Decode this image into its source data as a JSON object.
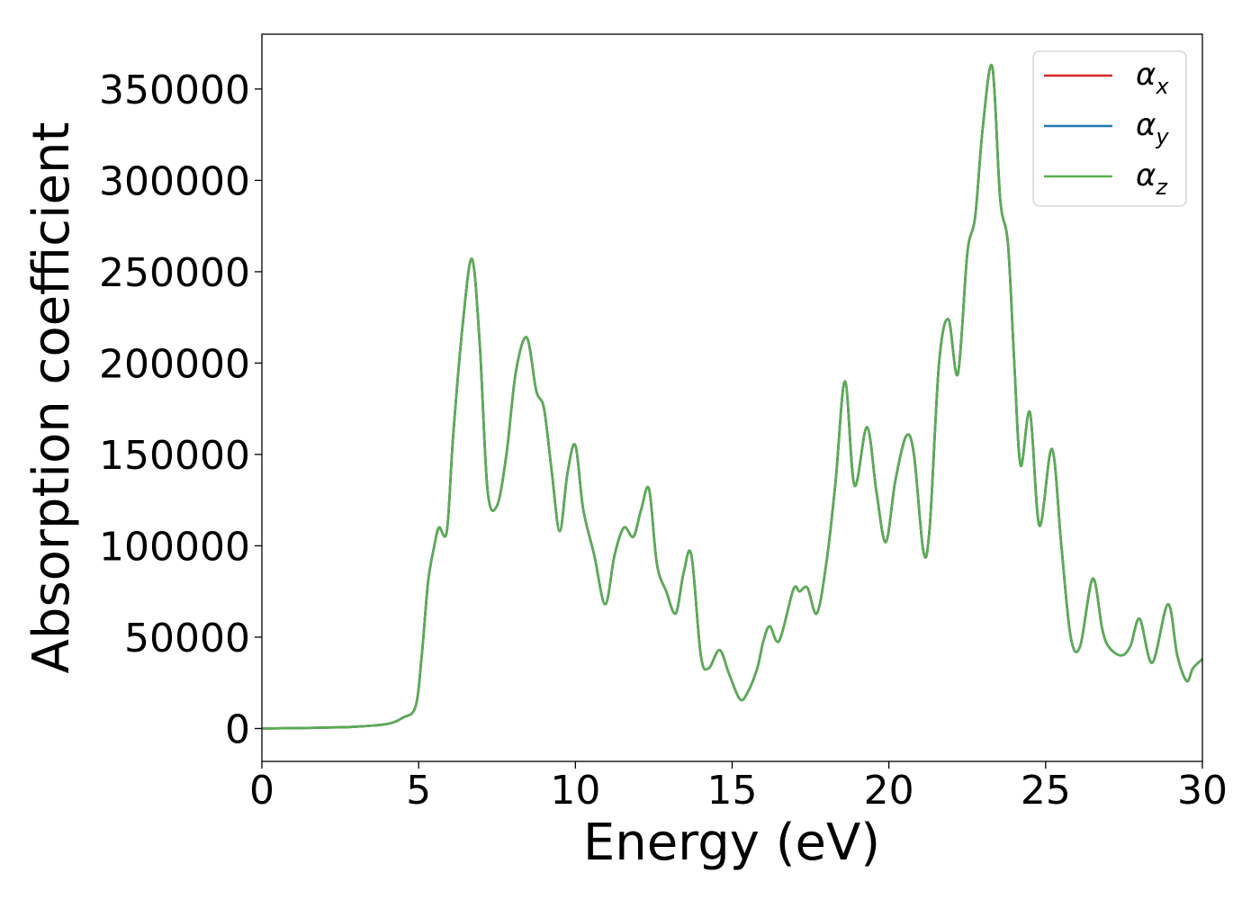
{
  "chart_data": {
    "type": "line",
    "xlabel": "Energy (eV)",
    "ylabel": "Absorption coefficient",
    "xlim": [
      0,
      30
    ],
    "ylim": [
      -18000,
      380000
    ],
    "xticks": [
      "0",
      "5",
      "10",
      "15",
      "20",
      "25",
      "30"
    ],
    "yticks": [
      "0",
      "50000",
      "100000",
      "150000",
      "200000",
      "250000",
      "300000",
      "350000"
    ],
    "legend_position": "top-right",
    "grid": false,
    "series": [
      {
        "name": "α",
        "subscript": "x",
        "color": "#d62728",
        "x": [
          0,
          1,
          2,
          3,
          4,
          4.5,
          4.9,
          5.1,
          5.3,
          5.5,
          5.65,
          5.9,
          6.1,
          6.4,
          6.7,
          6.95,
          7.2,
          7.5,
          7.8,
          8.1,
          8.45,
          8.75,
          9.0,
          9.25,
          9.5,
          9.75,
          10.0,
          10.25,
          10.6,
          10.95,
          11.25,
          11.55,
          11.85,
          12.1,
          12.35,
          12.6,
          12.9,
          13.2,
          13.45,
          13.7,
          14.0,
          14.25,
          14.6,
          14.9,
          15.25,
          15.5,
          15.8,
          16.0,
          16.2,
          16.5,
          16.95,
          17.15,
          17.4,
          17.7,
          18.0,
          18.3,
          18.6,
          18.9,
          19.3,
          19.6,
          19.9,
          20.2,
          20.55,
          20.8,
          21.1,
          21.3,
          21.6,
          21.9,
          22.2,
          22.5,
          22.75,
          23.0,
          23.3,
          23.55,
          23.8,
          24.0,
          24.2,
          24.5,
          24.8,
          25.2,
          25.5,
          25.8,
          26.1,
          26.5,
          26.8,
          27.0,
          27.4,
          27.7,
          28.0,
          28.4,
          28.9,
          29.2,
          29.5,
          29.7,
          30.0
        ],
        "y": [
          0,
          200,
          500,
          1000,
          2500,
          6000,
          12000,
          40000,
          80000,
          100000,
          110000,
          108000,
          160000,
          220000,
          257000,
          210000,
          130000,
          122000,
          150000,
          195000,
          214000,
          185000,
          175000,
          140000,
          108000,
          140000,
          155000,
          120000,
          95000,
          68000,
          95000,
          110000,
          105000,
          120000,
          131000,
          90000,
          75000,
          63000,
          85000,
          95000,
          40000,
          33000,
          43000,
          30000,
          16000,
          20000,
          33000,
          48000,
          56000,
          48000,
          76000,
          75000,
          77000,
          63000,
          90000,
          135000,
          190000,
          133000,
          165000,
          130000,
          102000,
          135000,
          160000,
          150000,
          97000,
          110000,
          200000,
          224000,
          194000,
          260000,
          280000,
          330000,
          362000,
          290000,
          265000,
          200000,
          144000,
          173000,
          111000,
          153000,
          100000,
          50000,
          45000,
          82000,
          55000,
          45000,
          40000,
          45000,
          60000,
          36000,
          68000,
          40000,
          26000,
          33000,
          38000
        ]
      },
      {
        "name": "α",
        "subscript": "y",
        "color": "#1f77b4",
        "x": [
          0,
          1,
          2,
          3,
          4,
          4.5,
          4.9,
          5.1,
          5.3,
          5.5,
          5.65,
          5.9,
          6.1,
          6.4,
          6.7,
          6.95,
          7.2,
          7.5,
          7.8,
          8.1,
          8.45,
          8.75,
          9.0,
          9.25,
          9.5,
          9.75,
          10.0,
          10.25,
          10.6,
          10.95,
          11.25,
          11.55,
          11.85,
          12.1,
          12.35,
          12.6,
          12.9,
          13.2,
          13.45,
          13.7,
          14.0,
          14.25,
          14.6,
          14.9,
          15.25,
          15.5,
          15.8,
          16.0,
          16.2,
          16.5,
          16.95,
          17.15,
          17.4,
          17.7,
          18.0,
          18.3,
          18.6,
          18.9,
          19.3,
          19.6,
          19.9,
          20.2,
          20.55,
          20.8,
          21.1,
          21.3,
          21.6,
          21.9,
          22.2,
          22.5,
          22.75,
          23.0,
          23.3,
          23.55,
          23.8,
          24.0,
          24.2,
          24.5,
          24.8,
          25.2,
          25.5,
          25.8,
          26.1,
          26.5,
          26.8,
          27.0,
          27.4,
          27.7,
          28.0,
          28.4,
          28.9,
          29.2,
          29.5,
          29.7,
          30.0
        ],
        "y": [
          0,
          200,
          500,
          1000,
          2500,
          6000,
          12000,
          40000,
          80000,
          100000,
          110000,
          108000,
          160000,
          220000,
          257000,
          210000,
          130000,
          122000,
          150000,
          195000,
          214000,
          185000,
          175000,
          140000,
          108000,
          140000,
          155000,
          120000,
          95000,
          68000,
          95000,
          110000,
          105000,
          120000,
          131000,
          90000,
          75000,
          63000,
          85000,
          95000,
          40000,
          33000,
          43000,
          30000,
          16000,
          20000,
          33000,
          48000,
          56000,
          48000,
          76000,
          75000,
          77000,
          63000,
          90000,
          135000,
          190000,
          133000,
          165000,
          130000,
          102000,
          135000,
          160000,
          150000,
          97000,
          110000,
          200000,
          224000,
          194000,
          260000,
          280000,
          330000,
          362000,
          290000,
          265000,
          200000,
          144000,
          173000,
          111000,
          153000,
          100000,
          50000,
          45000,
          82000,
          55000,
          45000,
          40000,
          45000,
          60000,
          36000,
          68000,
          40000,
          26000,
          33000,
          38000
        ]
      },
      {
        "name": "α",
        "subscript": "z",
        "color": "#5aad52",
        "x": [
          0,
          1,
          2,
          3,
          4,
          4.5,
          4.9,
          5.1,
          5.3,
          5.5,
          5.65,
          5.9,
          6.1,
          6.4,
          6.7,
          6.95,
          7.2,
          7.5,
          7.8,
          8.1,
          8.45,
          8.75,
          9.0,
          9.25,
          9.5,
          9.75,
          10.0,
          10.25,
          10.6,
          10.95,
          11.25,
          11.55,
          11.85,
          12.1,
          12.35,
          12.6,
          12.9,
          13.2,
          13.45,
          13.7,
          14.0,
          14.25,
          14.6,
          14.9,
          15.25,
          15.5,
          15.8,
          16.0,
          16.2,
          16.5,
          16.95,
          17.15,
          17.4,
          17.7,
          18.0,
          18.3,
          18.6,
          18.9,
          19.3,
          19.6,
          19.9,
          20.2,
          20.55,
          20.8,
          21.1,
          21.3,
          21.6,
          21.9,
          22.2,
          22.5,
          22.75,
          23.0,
          23.3,
          23.55,
          23.8,
          24.0,
          24.2,
          24.5,
          24.8,
          25.2,
          25.5,
          25.8,
          26.1,
          26.5,
          26.8,
          27.0,
          27.4,
          27.7,
          28.0,
          28.4,
          28.9,
          29.2,
          29.5,
          29.7,
          30.0
        ],
        "y": [
          0,
          200,
          500,
          1000,
          2500,
          6000,
          12000,
          40000,
          80000,
          100000,
          110000,
          108000,
          160000,
          220000,
          257000,
          210000,
          130000,
          122000,
          150000,
          195000,
          214000,
          185000,
          175000,
          140000,
          108000,
          140000,
          155000,
          120000,
          95000,
          68000,
          95000,
          110000,
          105000,
          120000,
          131000,
          90000,
          75000,
          63000,
          85000,
          95000,
          40000,
          33000,
          43000,
          30000,
          16000,
          20000,
          33000,
          48000,
          56000,
          48000,
          76000,
          75000,
          77000,
          63000,
          90000,
          135000,
          190000,
          133000,
          165000,
          130000,
          102000,
          135000,
          160000,
          150000,
          97000,
          110000,
          200000,
          224000,
          194000,
          260000,
          280000,
          330000,
          362000,
          290000,
          265000,
          200000,
          144000,
          173000,
          111000,
          153000,
          100000,
          50000,
          45000,
          82000,
          55000,
          45000,
          40000,
          45000,
          60000,
          36000,
          68000,
          40000,
          26000,
          33000,
          38000
        ]
      }
    ]
  }
}
